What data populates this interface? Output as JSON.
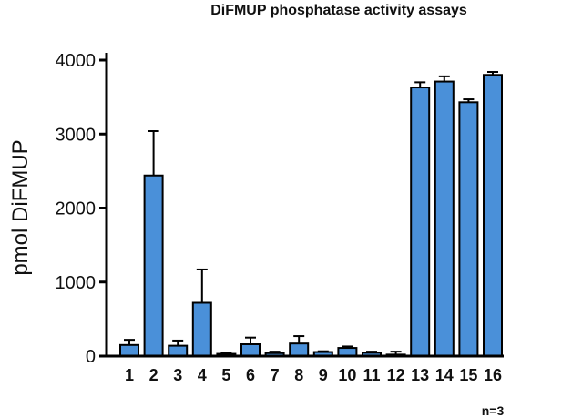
{
  "chart_data": {
    "type": "bar",
    "title": "DiFMUP phosphatase activity assays",
    "ylabel": "pmol DiFMUP",
    "xlabel": "",
    "categories": [
      "1",
      "2",
      "3",
      "4",
      "5",
      "6",
      "7",
      "8",
      "9",
      "10",
      "11",
      "12",
      "13",
      "14",
      "15",
      "16"
    ],
    "values": [
      150,
      2440,
      140,
      720,
      30,
      160,
      40,
      170,
      55,
      110,
      45,
      20,
      3630,
      3710,
      3430,
      3800
    ],
    "errors": [
      70,
      600,
      70,
      450,
      15,
      90,
      20,
      100,
      10,
      20,
      15,
      40,
      70,
      70,
      40,
      40
    ],
    "ylim": [
      0,
      4000
    ],
    "yticks": [
      0,
      1000,
      2000,
      3000,
      4000
    ],
    "bar_color": "#4a90d9",
    "grid": false,
    "annotation": "n=3"
  }
}
